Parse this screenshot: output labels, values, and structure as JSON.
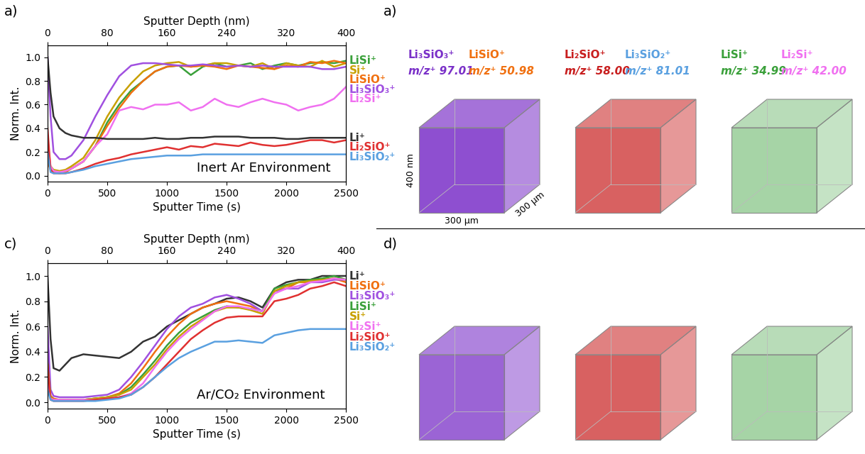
{
  "chart_data": [
    {
      "panel": "a)",
      "type": "line",
      "xlabel": "Sputter Time (s)",
      "ylabel": "Norm. Int.",
      "x2label": "Sputter Depth (nm)",
      "annotation": "Inert Ar Environment",
      "x": [
        0,
        25,
        50,
        100,
        150,
        200,
        300,
        400,
        500,
        600,
        700,
        800,
        900,
        1000,
        1100,
        1200,
        1300,
        1400,
        1500,
        1600,
        1700,
        1800,
        1900,
        2000,
        2100,
        2200,
        2300,
        2400,
        2500
      ],
      "xlim": [
        0,
        2500
      ],
      "xticks": [
        0,
        500,
        1000,
        1500,
        2000,
        2500
      ],
      "x2lim": [
        0,
        400
      ],
      "x2ticks": [
        0,
        80,
        160,
        240,
        320,
        400
      ],
      "ylim": [
        -0.05,
        1.1
      ],
      "yticks": [
        {
          "value": 0.0,
          "label": "0.0"
        },
        {
          "value": 0.2,
          "label": "0.2"
        },
        {
          "value": 0.4,
          "label": "0.4"
        },
        {
          "value": 0.6,
          "label": "0.6"
        },
        {
          "value": 0.8,
          "label": "0.8"
        },
        {
          "value": 1.0,
          "label": "1.0"
        }
      ],
      "series": [
        {
          "name": "LiSi⁺",
          "color": "#3aa03a",
          "values": [
            0.15,
            0.06,
            0.04,
            0.03,
            0.04,
            0.06,
            0.12,
            0.25,
            0.45,
            0.6,
            0.72,
            0.8,
            0.88,
            0.92,
            0.93,
            0.85,
            0.92,
            0.95,
            0.92,
            0.93,
            0.95,
            0.9,
            0.93,
            0.95,
            0.93,
            0.95,
            0.96,
            0.95,
            0.97
          ]
        },
        {
          "name": "Si⁺",
          "color": "#c8a000",
          "values": [
            0.2,
            0.08,
            0.05,
            0.04,
            0.05,
            0.08,
            0.15,
            0.3,
            0.5,
            0.66,
            0.78,
            0.88,
            0.93,
            0.95,
            0.96,
            0.92,
            0.93,
            0.95,
            0.95,
            0.93,
            0.92,
            0.95,
            0.9,
            0.95,
            0.93,
            0.92,
            0.97,
            0.92,
            0.95
          ]
        },
        {
          "name": "LiSiO⁺",
          "color": "#f07010",
          "values": [
            0.12,
            0.05,
            0.03,
            0.02,
            0.03,
            0.06,
            0.12,
            0.25,
            0.42,
            0.57,
            0.7,
            0.8,
            0.88,
            0.92,
            0.93,
            0.92,
            0.93,
            0.92,
            0.9,
            0.93,
            0.92,
            0.91,
            0.9,
            0.93,
            0.92,
            0.96,
            0.95,
            0.97,
            0.95
          ]
        },
        {
          "name": "Li₃SiO₃⁺",
          "color": "#a050e0",
          "values": [
            1.0,
            0.5,
            0.2,
            0.14,
            0.14,
            0.17,
            0.3,
            0.5,
            0.68,
            0.84,
            0.93,
            0.95,
            0.95,
            0.94,
            0.93,
            0.93,
            0.94,
            0.93,
            0.92,
            0.93,
            0.92,
            0.93,
            0.92,
            0.92,
            0.92,
            0.92,
            0.9,
            0.9,
            0.92
          ]
        },
        {
          "name": "Li₂Si⁺",
          "color": "#f070f0",
          "values": [
            0.3,
            0.08,
            0.04,
            0.03,
            0.04,
            0.06,
            0.12,
            0.25,
            0.35,
            0.55,
            0.58,
            0.56,
            0.6,
            0.6,
            0.62,
            0.55,
            0.58,
            0.65,
            0.6,
            0.58,
            0.62,
            0.65,
            0.62,
            0.6,
            0.55,
            0.58,
            0.6,
            0.65,
            0.75
          ]
        },
        {
          "name": "Li⁺",
          "color": "#333333",
          "values": [
            1.0,
            0.7,
            0.5,
            0.4,
            0.36,
            0.34,
            0.32,
            0.32,
            0.31,
            0.31,
            0.31,
            0.31,
            0.32,
            0.31,
            0.31,
            0.32,
            0.32,
            0.33,
            0.33,
            0.33,
            0.32,
            0.32,
            0.32,
            0.31,
            0.31,
            0.32,
            0.32,
            0.32,
            0.32
          ]
        },
        {
          "name": "Li₂SiO⁺",
          "color": "#e03030",
          "values": [
            0.4,
            0.05,
            0.02,
            0.02,
            0.02,
            0.03,
            0.06,
            0.1,
            0.13,
            0.15,
            0.18,
            0.2,
            0.22,
            0.24,
            0.22,
            0.25,
            0.24,
            0.27,
            0.26,
            0.25,
            0.28,
            0.26,
            0.25,
            0.26,
            0.28,
            0.3,
            0.3,
            0.28,
            0.3
          ]
        },
        {
          "name": "Li₃SiO₂⁺",
          "color": "#5aa0e0",
          "values": [
            0.2,
            0.03,
            0.02,
            0.02,
            0.02,
            0.03,
            0.05,
            0.08,
            0.1,
            0.12,
            0.14,
            0.15,
            0.16,
            0.17,
            0.17,
            0.17,
            0.18,
            0.18,
            0.18,
            0.18,
            0.18,
            0.18,
            0.18,
            0.18,
            0.18,
            0.18,
            0.18,
            0.18,
            0.18
          ]
        }
      ]
    },
    {
      "panel": "c)",
      "type": "line",
      "xlabel": "Sputter Time (s)",
      "ylabel": "Norm. Int.",
      "x2label": "Sputter Depth (nm)",
      "annotation": "Ar/CO₂ Environment",
      "x": [
        0,
        25,
        50,
        100,
        150,
        200,
        300,
        400,
        500,
        600,
        700,
        800,
        900,
        1000,
        1100,
        1200,
        1300,
        1400,
        1500,
        1600,
        1700,
        1800,
        1900,
        2000,
        2100,
        2200,
        2300,
        2400,
        2500
      ],
      "xlim": [
        0,
        2500
      ],
      "xticks": [
        0,
        500,
        1000,
        1500,
        2000,
        2500
      ],
      "x2lim": [
        0,
        400
      ],
      "x2ticks": [
        0,
        80,
        160,
        240,
        320,
        400
      ],
      "ylim": [
        -0.05,
        1.1
      ],
      "yticks": [
        {
          "value": 0.0,
          "label": "0.0"
        },
        {
          "value": 0.2,
          "label": "0.2"
        },
        {
          "value": 0.4,
          "label": "0.4"
        },
        {
          "value": 0.6,
          "label": "0.6"
        },
        {
          "value": 0.8,
          "label": "0.8"
        },
        {
          "value": 1.0,
          "label": "1.0"
        }
      ],
      "series": [
        {
          "name": "Li⁺",
          "color": "#333333",
          "values": [
            1.0,
            0.5,
            0.27,
            0.25,
            0.3,
            0.35,
            0.38,
            0.37,
            0.36,
            0.35,
            0.4,
            0.48,
            0.52,
            0.6,
            0.65,
            0.7,
            0.75,
            0.78,
            0.82,
            0.83,
            0.8,
            0.75,
            0.9,
            0.95,
            0.97,
            0.97,
            1.0,
            1.0,
            1.0
          ]
        },
        {
          "name": "LiSiO⁺",
          "color": "#f07010",
          "values": [
            0.4,
            0.05,
            0.03,
            0.02,
            0.02,
            0.02,
            0.02,
            0.03,
            0.04,
            0.07,
            0.15,
            0.27,
            0.4,
            0.52,
            0.62,
            0.7,
            0.75,
            0.78,
            0.8,
            0.78,
            0.76,
            0.72,
            0.88,
            0.9,
            0.95,
            0.95,
            0.97,
            0.98,
            0.95
          ]
        },
        {
          "name": "Li₃SiO₃⁺",
          "color": "#a050e0",
          "values": [
            0.6,
            0.1,
            0.05,
            0.04,
            0.04,
            0.04,
            0.04,
            0.05,
            0.06,
            0.1,
            0.2,
            0.32,
            0.45,
            0.58,
            0.68,
            0.75,
            0.78,
            0.83,
            0.85,
            0.82,
            0.78,
            0.72,
            0.88,
            0.9,
            0.9,
            0.95,
            0.95,
            0.97,
            0.97
          ]
        },
        {
          "name": "LiSi⁺",
          "color": "#3aa03a",
          "values": [
            0.3,
            0.04,
            0.02,
            0.02,
            0.02,
            0.02,
            0.02,
            0.03,
            0.04,
            0.06,
            0.12,
            0.22,
            0.33,
            0.45,
            0.55,
            0.63,
            0.68,
            0.73,
            0.76,
            0.75,
            0.74,
            0.72,
            0.9,
            0.93,
            0.95,
            0.97,
            0.98,
            1.0,
            0.97
          ]
        },
        {
          "name": "Si⁺",
          "color": "#c8a000",
          "values": [
            0.3,
            0.04,
            0.02,
            0.02,
            0.02,
            0.02,
            0.02,
            0.03,
            0.04,
            0.06,
            0.1,
            0.2,
            0.3,
            0.42,
            0.52,
            0.6,
            0.66,
            0.72,
            0.75,
            0.75,
            0.73,
            0.7,
            0.88,
            0.92,
            0.95,
            0.96,
            0.97,
            0.98,
            0.97
          ]
        },
        {
          "name": "Li₂Si⁺",
          "color": "#f070f0",
          "values": [
            0.2,
            0.03,
            0.02,
            0.02,
            0.02,
            0.02,
            0.02,
            0.02,
            0.03,
            0.04,
            0.07,
            0.15,
            0.28,
            0.4,
            0.5,
            0.58,
            0.65,
            0.72,
            0.76,
            0.76,
            0.74,
            0.72,
            0.86,
            0.9,
            0.92,
            0.95,
            0.96,
            0.98,
            0.97
          ]
        },
        {
          "name": "Li₂SiO⁺",
          "color": "#e03030",
          "values": [
            0.3,
            0.02,
            0.01,
            0.01,
            0.01,
            0.01,
            0.01,
            0.02,
            0.03,
            0.04,
            0.06,
            0.12,
            0.2,
            0.3,
            0.4,
            0.5,
            0.57,
            0.63,
            0.67,
            0.68,
            0.68,
            0.68,
            0.8,
            0.82,
            0.85,
            0.9,
            0.92,
            0.95,
            0.92
          ]
        },
        {
          "name": "Li₃SiO₂⁺",
          "color": "#5aa0e0",
          "values": [
            0.1,
            0.02,
            0.01,
            0.01,
            0.01,
            0.01,
            0.01,
            0.01,
            0.02,
            0.03,
            0.06,
            0.12,
            0.2,
            0.28,
            0.35,
            0.4,
            0.44,
            0.48,
            0.48,
            0.49,
            0.48,
            0.47,
            0.53,
            0.55,
            0.57,
            0.58,
            0.58,
            0.58,
            0.58
          ]
        }
      ]
    }
  ],
  "volume_panels": [
    {
      "panel": "a)",
      "mz_label": "m/z⁺",
      "dimensions": {
        "depth": "400 nm",
        "width": "300 µm",
        "length": "300 µm"
      },
      "cubes": [
        {
          "color": "#7a30c8",
          "ions": [
            {
              "name": "Li₃SiO₃⁺",
              "mz": 97.01,
              "color": "#7a30c8"
            },
            {
              "name": "LiSiO⁺",
              "mz": 50.98,
              "color": "#f07010"
            }
          ]
        },
        {
          "color": "#c81e1e",
          "ions": [
            {
              "name": "Li₂SiO⁺",
              "mz": 58.0,
              "color": "#c81e1e"
            },
            {
              "name": "Li₃SiO₂⁺",
              "mz": 81.01,
              "color": "#5aa0e0"
            }
          ]
        },
        {
          "color": "#3aa03a",
          "ions": [
            {
              "name": "LiSi⁺",
              "mz": 34.99,
              "color": "#3aa03a"
            },
            {
              "name": "Li₂Si⁺",
              "mz": 42.0,
              "color": "#f070f0"
            }
          ]
        }
      ]
    },
    {
      "panel": "d)",
      "cubes": [
        {
          "color": "#7a30c8"
        },
        {
          "color": "#c81e1e"
        },
        {
          "color": "#3aa03a"
        }
      ]
    }
  ]
}
